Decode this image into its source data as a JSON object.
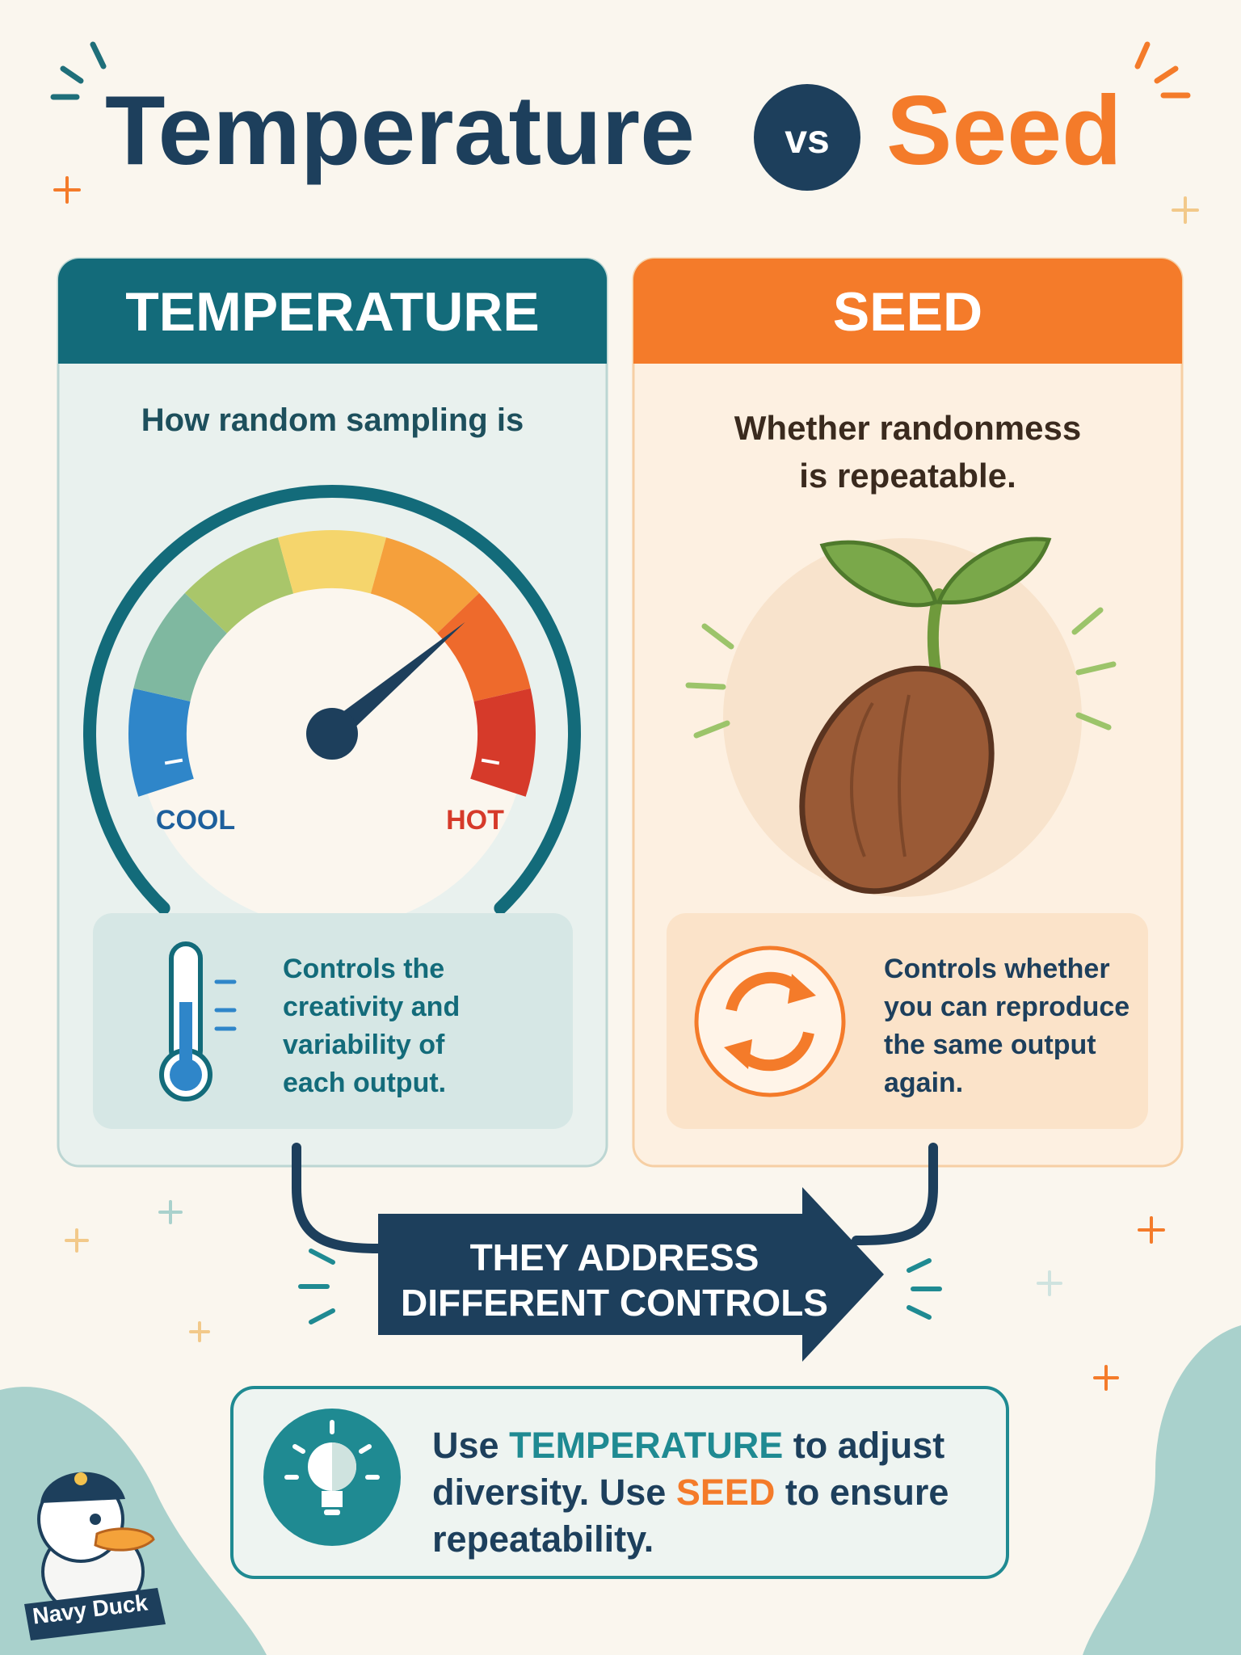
{
  "title": {
    "left": "Temperature",
    "middle": "vs",
    "right": "Seed"
  },
  "temperature_card": {
    "header": "TEMPERATURE",
    "subtitle": "How random sampling is",
    "gauge": {
      "low_label": "COOL",
      "high_label": "HOT"
    },
    "description": [
      "Controls the",
      "creativity and",
      "variability of",
      "each output."
    ]
  },
  "seed_card": {
    "header": "SEED",
    "subtitle": [
      "Whether randonmess",
      "is repeatable."
    ],
    "description": [
      "Controls whether",
      "you can reproduce",
      "the same output",
      "again."
    ]
  },
  "connector": {
    "label": [
      "THEY ADDRESS",
      "DIFFERENT CONTROLS"
    ]
  },
  "tip": {
    "lines": [
      [
        "Use ",
        "TEMPERATURE",
        " to adjust"
      ],
      [
        "diversity. Use ",
        "SEED",
        " to ensure"
      ],
      [
        "repeatability."
      ]
    ]
  },
  "badge": "Navy Duck"
}
